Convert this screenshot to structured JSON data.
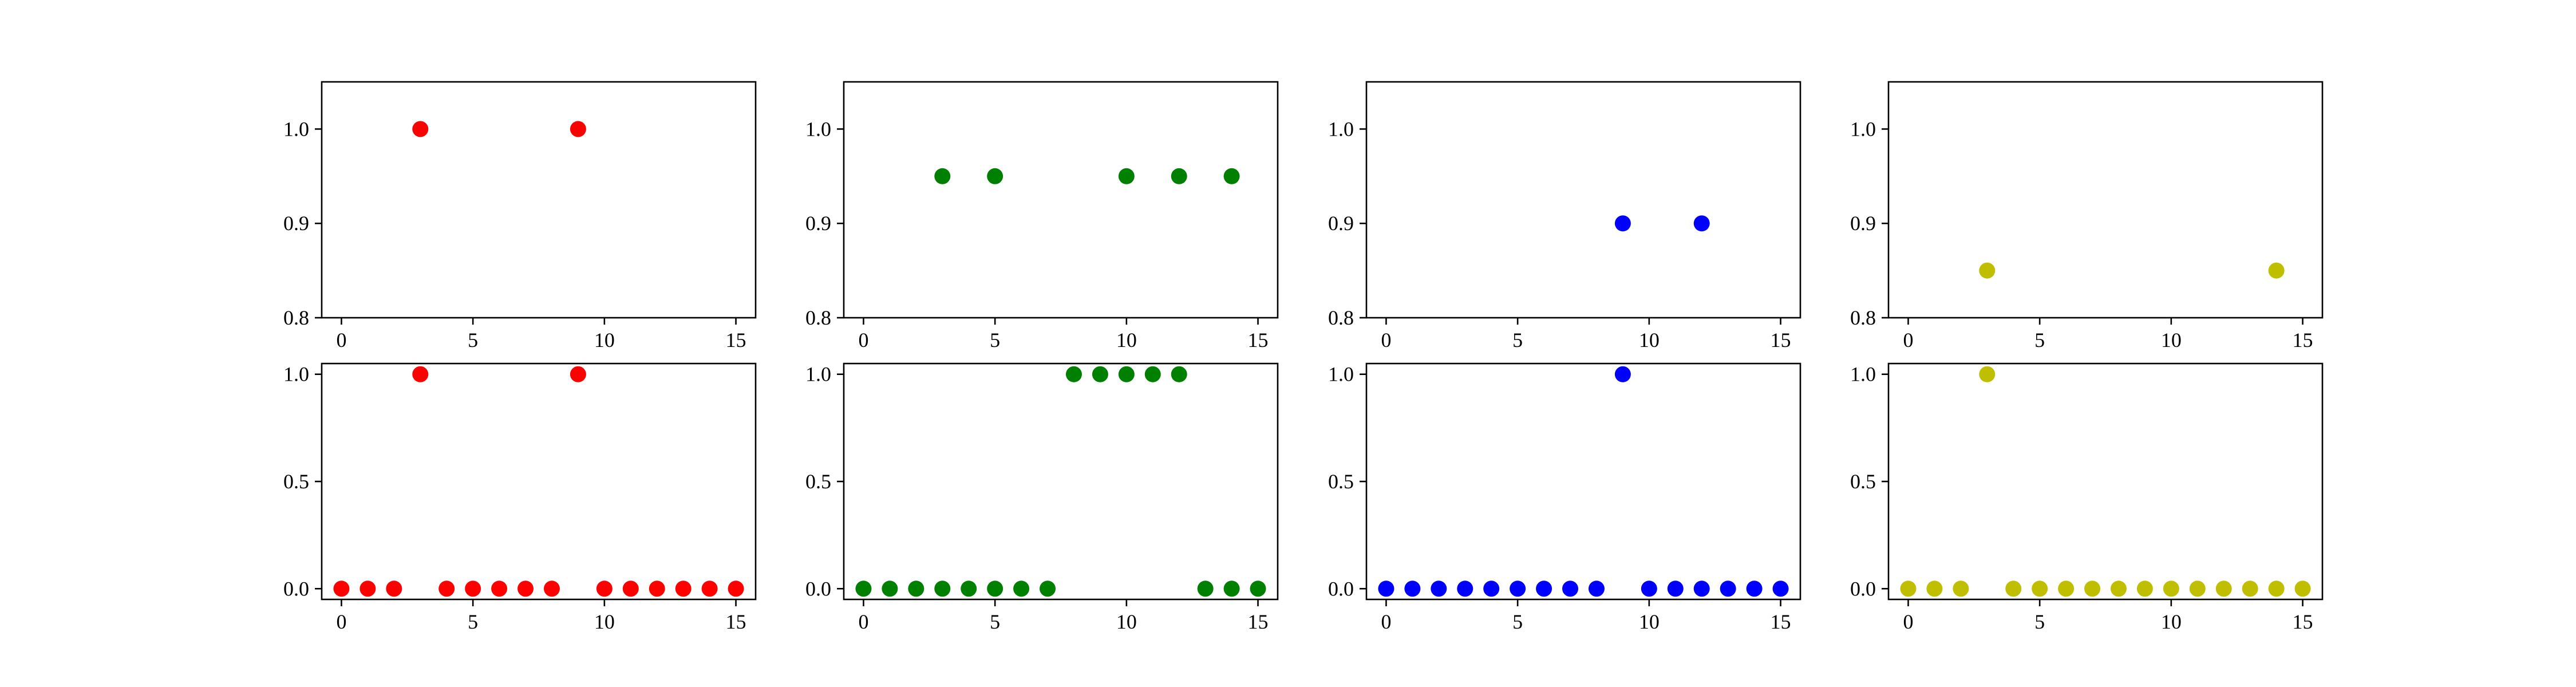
{
  "chart_data": [
    {
      "type": "scatter",
      "color": "#ff0000",
      "x": [
        3,
        9
      ],
      "y": [
        1.0,
        1.0
      ],
      "xlim": [
        -0.75,
        15.75
      ],
      "ylim": [
        0.8,
        1.05
      ],
      "xticks": [
        0,
        5,
        10,
        15
      ],
      "yticks": [
        0.8,
        0.9,
        1.0
      ],
      "xticklabels": [
        "0",
        "5",
        "10",
        "15"
      ],
      "yticklabels": [
        "0.8",
        "0.9",
        "1.0"
      ],
      "title": "",
      "xlabel": "",
      "ylabel": "",
      "grid": false
    },
    {
      "type": "scatter",
      "color": "#008000",
      "x": [
        3,
        5,
        10,
        12,
        14
      ],
      "y": [
        0.95,
        0.95,
        0.95,
        0.95,
        0.95
      ],
      "xlim": [
        -0.75,
        15.75
      ],
      "ylim": [
        0.8,
        1.05
      ],
      "xticks": [
        0,
        5,
        10,
        15
      ],
      "yticks": [
        0.8,
        0.9,
        1.0
      ],
      "xticklabels": [
        "0",
        "5",
        "10",
        "15"
      ],
      "yticklabels": [
        "0.8",
        "0.9",
        "1.0"
      ],
      "title": "",
      "xlabel": "",
      "ylabel": "",
      "grid": false
    },
    {
      "type": "scatter",
      "color": "#0000ff",
      "x": [
        9,
        12
      ],
      "y": [
        0.9,
        0.9
      ],
      "xlim": [
        -0.75,
        15.75
      ],
      "ylim": [
        0.8,
        1.05
      ],
      "xticks": [
        0,
        5,
        10,
        15
      ],
      "yticks": [
        0.8,
        0.9,
        1.0
      ],
      "xticklabels": [
        "0",
        "5",
        "10",
        "15"
      ],
      "yticklabels": [
        "0.8",
        "0.9",
        "1.0"
      ],
      "title": "",
      "xlabel": "",
      "ylabel": "",
      "grid": false
    },
    {
      "type": "scatter",
      "color": "#bfbf00",
      "x": [
        3,
        14
      ],
      "y": [
        0.85,
        0.85
      ],
      "xlim": [
        -0.75,
        15.75
      ],
      "ylim": [
        0.8,
        1.05
      ],
      "xticks": [
        0,
        5,
        10,
        15
      ],
      "yticks": [
        0.8,
        0.9,
        1.0
      ],
      "xticklabels": [
        "0",
        "5",
        "10",
        "15"
      ],
      "yticklabels": [
        "0.8",
        "0.9",
        "1.0"
      ],
      "title": "",
      "xlabel": "",
      "ylabel": "",
      "grid": false
    },
    {
      "type": "scatter",
      "color": "#ff0000",
      "x": [
        0,
        1,
        2,
        3,
        4,
        5,
        6,
        7,
        8,
        9,
        10,
        11,
        12,
        13,
        14,
        15
      ],
      "y": [
        0,
        0,
        0,
        1,
        0,
        0,
        0,
        0,
        0,
        1,
        0,
        0,
        0,
        0,
        0,
        0
      ],
      "xlim": [
        -0.75,
        15.75
      ],
      "ylim": [
        -0.05,
        1.05
      ],
      "xticks": [
        0,
        5,
        10,
        15
      ],
      "yticks": [
        0.0,
        0.5,
        1.0
      ],
      "xticklabels": [
        "0",
        "5",
        "10",
        "15"
      ],
      "yticklabels": [
        "0.0",
        "0.5",
        "1.0"
      ],
      "title": "",
      "xlabel": "",
      "ylabel": "",
      "grid": false
    },
    {
      "type": "scatter",
      "color": "#008000",
      "x": [
        0,
        1,
        2,
        3,
        4,
        5,
        6,
        7,
        8,
        9,
        10,
        11,
        12,
        13,
        14,
        15
      ],
      "y": [
        0,
        0,
        0,
        0,
        0,
        0,
        0,
        0,
        1,
        1,
        1,
        1,
        1,
        0,
        0,
        0
      ],
      "xlim": [
        -0.75,
        15.75
      ],
      "ylim": [
        -0.05,
        1.05
      ],
      "xticks": [
        0,
        5,
        10,
        15
      ],
      "yticks": [
        0.0,
        0.5,
        1.0
      ],
      "xticklabels": [
        "0",
        "5",
        "10",
        "15"
      ],
      "yticklabels": [
        "0.0",
        "0.5",
        "1.0"
      ],
      "title": "",
      "xlabel": "",
      "ylabel": "",
      "grid": false
    },
    {
      "type": "scatter",
      "color": "#0000ff",
      "x": [
        0,
        1,
        2,
        3,
        4,
        5,
        6,
        7,
        8,
        9,
        10,
        11,
        12,
        13,
        14,
        15
      ],
      "y": [
        0,
        0,
        0,
        0,
        0,
        0,
        0,
        0,
        0,
        1,
        0,
        0,
        0,
        0,
        0,
        0
      ],
      "xlim": [
        -0.75,
        15.75
      ],
      "ylim": [
        -0.05,
        1.05
      ],
      "xticks": [
        0,
        5,
        10,
        15
      ],
      "yticks": [
        0.0,
        0.5,
        1.0
      ],
      "xticklabels": [
        "0",
        "5",
        "10",
        "15"
      ],
      "yticklabels": [
        "0.0",
        "0.5",
        "1.0"
      ],
      "title": "",
      "xlabel": "",
      "ylabel": "",
      "grid": false
    },
    {
      "type": "scatter",
      "color": "#bfbf00",
      "x": [
        0,
        1,
        2,
        3,
        4,
        5,
        6,
        7,
        8,
        9,
        10,
        11,
        12,
        13,
        14,
        15
      ],
      "y": [
        0,
        0,
        0,
        1,
        0,
        0,
        0,
        0,
        0,
        0,
        0,
        0,
        0,
        0,
        0,
        0
      ],
      "xlim": [
        -0.75,
        15.75
      ],
      "ylim": [
        -0.05,
        1.05
      ],
      "xticks": [
        0,
        5,
        10,
        15
      ],
      "yticks": [
        0.0,
        0.5,
        1.0
      ],
      "xticklabels": [
        "0",
        "5",
        "10",
        "15"
      ],
      "yticklabels": [
        "0.0",
        "0.5",
        "1.0"
      ],
      "title": "",
      "xlabel": "",
      "ylabel": "",
      "grid": false
    }
  ]
}
